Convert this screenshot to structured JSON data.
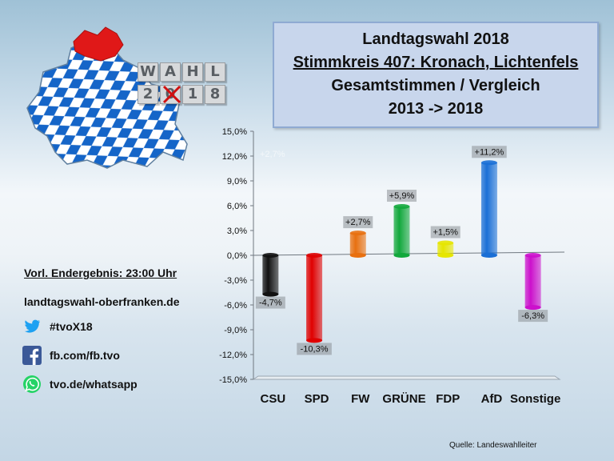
{
  "title": {
    "line1": "Landtagswahl 2018",
    "line2": "Stimmkreis 407: Kronach, Lichtenfels",
    "line3": "Gesamtstimmen / Vergleich",
    "line4": "2013 -> 2018"
  },
  "logo": {
    "letters_top": [
      "W",
      "A",
      "H",
      "L"
    ],
    "letters_bottom": [
      "2",
      "0",
      "1",
      "8"
    ]
  },
  "info": {
    "result_time": "Vorl. Endergebnis: 23:00 Uhr",
    "website": "landtagswahl-oberfranken.de"
  },
  "social": [
    {
      "icon": "twitter-icon",
      "text": "#tvoX18",
      "color": "#1da1f2"
    },
    {
      "icon": "facebook-icon",
      "text": "fb.com/fb.tvo",
      "color": "#3b5998"
    },
    {
      "icon": "whatsapp-icon",
      "text": "tvo.de/whatsapp",
      "color": "#25d366"
    }
  ],
  "source": "Quelle: Landeswahlleiter",
  "faint_label": "+2,7%",
  "chart_data": {
    "type": "bar",
    "categories": [
      "CSU",
      "SPD",
      "FW",
      "GRÜNE",
      "FDP",
      "AfD",
      "Sonstige"
    ],
    "values": [
      -4.7,
      -10.3,
      2.7,
      5.9,
      1.5,
      11.2,
      -6.3
    ],
    "labels": [
      "-4,7%",
      "-10,3%",
      "+2,7%",
      "+5,9%",
      "+1,5%",
      "+11,2%",
      "-6,3%"
    ],
    "colors": [
      "#111111",
      "#e00000",
      "#e87010",
      "#12a83c",
      "#e6e600",
      "#1a6fd6",
      "#cc10cc"
    ],
    "yticks": [
      "15,0%",
      "12,0%",
      "9,0%",
      "6,0%",
      "3,0%",
      "0,0%",
      "-3,0%",
      "-6,0%",
      "-9,0%",
      "-12,0%",
      "-15,0%"
    ],
    "ylim": [
      -15,
      15
    ],
    "grid": false
  }
}
